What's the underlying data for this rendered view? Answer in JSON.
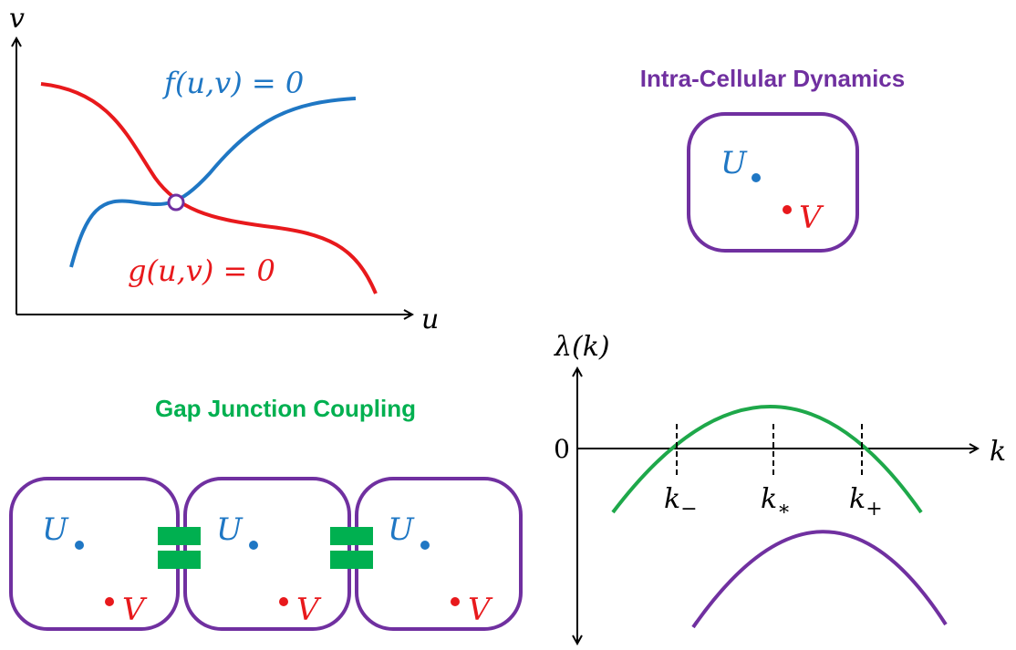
{
  "phase_plane": {
    "y_label": "v",
    "x_label": "u",
    "f_label": "f(u,v) = 0",
    "g_label": "g(u,v) = 0"
  },
  "intra_cellular": {
    "title": "Intra-Cellular Dynamics",
    "u_label": "U",
    "v_label": "V"
  },
  "gap_junction": {
    "title": "Gap Junction Coupling",
    "cells": [
      {
        "u_label": "U",
        "v_label": "V"
      },
      {
        "u_label": "U",
        "v_label": "V"
      },
      {
        "u_label": "U",
        "v_label": "V"
      }
    ]
  },
  "dispersion": {
    "y_label": "λ(k)",
    "zero_label": "0",
    "x_label": "k",
    "markers": [
      {
        "base": "k",
        "sub": "−"
      },
      {
        "base": "k",
        "sub": "∗"
      },
      {
        "base": "k",
        "sub": "+"
      }
    ]
  }
}
